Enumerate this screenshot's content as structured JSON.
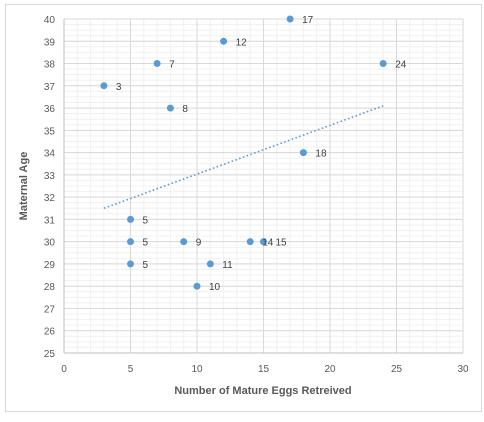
{
  "chart_data": {
    "type": "scatter",
    "title": "",
    "xlabel": "Number of Mature Eggs Retreived",
    "ylabel": "Maternal Age",
    "xlim": [
      0,
      30
    ],
    "ylim": [
      25,
      40
    ],
    "x_ticks": [
      0,
      5,
      10,
      15,
      20,
      25,
      30
    ],
    "y_ticks": [
      25,
      26,
      27,
      28,
      29,
      30,
      31,
      32,
      33,
      34,
      35,
      36,
      37,
      38,
      39,
      40
    ],
    "grid": true,
    "legend": "none",
    "colors": {
      "marker": "#5b9bd5",
      "trendline": "#5b9bd5",
      "grid": "#d9d9d9",
      "axis": "#bfbfbf"
    },
    "points": [
      {
        "x": 17,
        "y": 40,
        "label": "17"
      },
      {
        "x": 12,
        "y": 39,
        "label": "12"
      },
      {
        "x": 7,
        "y": 38,
        "label": "7"
      },
      {
        "x": 24,
        "y": 38,
        "label": "24"
      },
      {
        "x": 3,
        "y": 37,
        "label": "3"
      },
      {
        "x": 8,
        "y": 36,
        "label": "8"
      },
      {
        "x": 18,
        "y": 34,
        "label": "18"
      },
      {
        "x": 5,
        "y": 31,
        "label": "5"
      },
      {
        "x": 5,
        "y": 30,
        "label": "5"
      },
      {
        "x": 9,
        "y": 30,
        "label": "9"
      },
      {
        "x": 14,
        "y": 30,
        "label": "14"
      },
      {
        "x": 15,
        "y": 30,
        "label": "15"
      },
      {
        "x": 5,
        "y": 29,
        "label": "5"
      },
      {
        "x": 11,
        "y": 29,
        "label": "11"
      },
      {
        "x": 10,
        "y": 28,
        "label": "10"
      }
    ],
    "trendline": {
      "type": "linear",
      "x": [
        3,
        24
      ],
      "y": [
        31.5,
        36.1
      ]
    }
  }
}
